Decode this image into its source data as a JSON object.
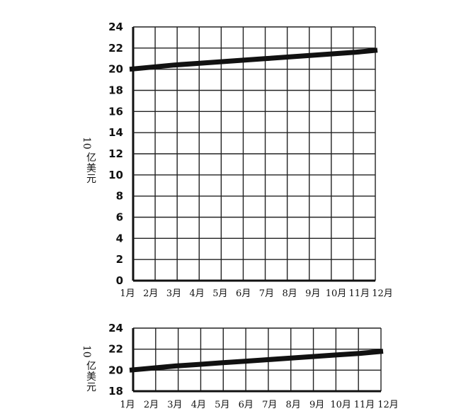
{
  "chart_data": [
    {
      "type": "line",
      "title": "",
      "ylabel": "亿美元",
      "ylabel_prefix": "10",
      "xlabel": "",
      "categories": [
        "1月",
        "2月",
        "3月",
        "4月",
        "5月",
        "6月",
        "7月",
        "8月",
        "9月",
        "10月",
        "11月",
        "12月"
      ],
      "y_ticks": [
        0,
        2,
        4,
        6,
        8,
        10,
        12,
        14,
        16,
        18,
        20,
        22,
        24
      ],
      "ylim": [
        0,
        24
      ],
      "grid": true,
      "series": [
        {
          "values": [
            20.0,
            20.2,
            20.4,
            20.55,
            20.7,
            20.85,
            21.0,
            21.15,
            21.3,
            21.45,
            21.6,
            21.8
          ]
        }
      ]
    },
    {
      "type": "line",
      "title": "",
      "ylabel": "亿美元",
      "ylabel_prefix": "10",
      "xlabel": "",
      "categories": [
        "1月",
        "2月",
        "3月",
        "4月",
        "5月",
        "6月",
        "7月",
        "8月",
        "9月",
        "10月",
        "11月",
        "12月"
      ],
      "y_ticks": [
        18,
        20,
        22,
        24
      ],
      "ylim": [
        18,
        24
      ],
      "grid": true,
      "series": [
        {
          "values": [
            20.0,
            20.2,
            20.4,
            20.55,
            20.7,
            20.85,
            21.0,
            21.15,
            21.3,
            21.45,
            21.6,
            21.8
          ]
        }
      ]
    }
  ]
}
